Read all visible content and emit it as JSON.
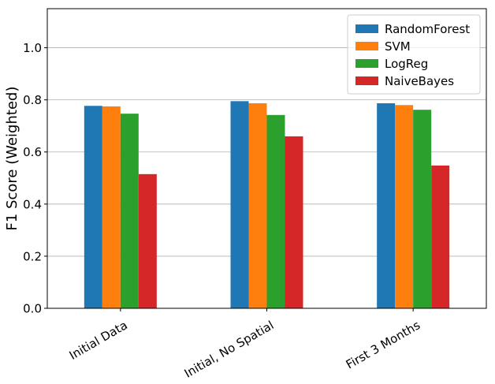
{
  "chart_data": {
    "type": "bar",
    "title": "",
    "xlabel": "",
    "ylabel": "F1 Score (Weighted)",
    "ylim": [
      0,
      1.15
    ],
    "yticks": [
      0.0,
      0.2,
      0.4,
      0.6,
      0.8,
      1.0
    ],
    "ytick_labels": [
      "0.0",
      "0.2",
      "0.4",
      "0.6",
      "0.8",
      "1.0"
    ],
    "grid": "y",
    "legend_position": "top-right",
    "categories": [
      "Initial Data",
      "Initial, No Spatial",
      "First 3 Months"
    ],
    "series": [
      {
        "name": "RandomForest",
        "color": "#1f77b4",
        "values": [
          0.777,
          0.795,
          0.787
        ]
      },
      {
        "name": "SVM",
        "color": "#ff7f0e",
        "values": [
          0.775,
          0.787,
          0.78
        ]
      },
      {
        "name": "LogReg",
        "color": "#2ca02c",
        "values": [
          0.747,
          0.742,
          0.762
        ]
      },
      {
        "name": "NaiveBayes",
        "color": "#d62728",
        "values": [
          0.515,
          0.66,
          0.548
        ]
      }
    ]
  }
}
